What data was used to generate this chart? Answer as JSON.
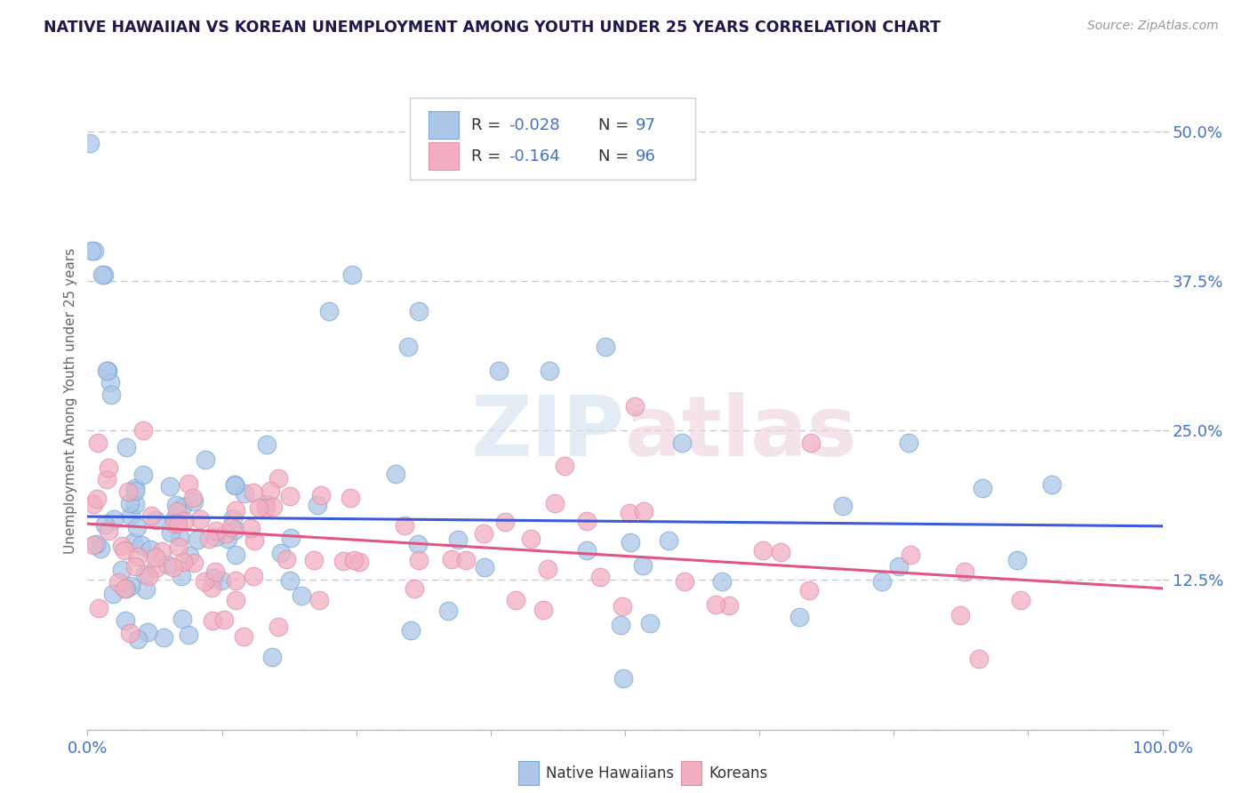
{
  "title": "NATIVE HAWAIIAN VS KOREAN UNEMPLOYMENT AMONG YOUTH UNDER 25 YEARS CORRELATION CHART",
  "source": "Source: ZipAtlas.com",
  "ylabel": "Unemployment Among Youth under 25 years",
  "xlim": [
    0,
    1.0
  ],
  "ylim": [
    0,
    0.55
  ],
  "xticks": [
    0.0,
    0.125,
    0.25,
    0.375,
    0.5,
    0.625,
    0.75,
    0.875,
    1.0
  ],
  "xticklabels": [
    "0.0%",
    "",
    "",
    "",
    "",
    "",
    "",
    "",
    "100.0%"
  ],
  "ytick_positions": [
    0.0,
    0.125,
    0.25,
    0.375,
    0.5
  ],
  "yticklabels": [
    "",
    "12.5%",
    "25.0%",
    "37.5%",
    "50.0%"
  ],
  "legend_r1": "R = -0.028",
  "legend_n1": "N = 97",
  "legend_r2": "R = -0.164",
  "legend_n2": "N = 96",
  "color_hawaiian": "#adc6e8",
  "color_korean": "#f2afc0",
  "line_color_hawaiian": "#3b5bdb",
  "line_color_korean": "#e05585",
  "watermark": "ZIPatlas",
  "background_color": "#ffffff",
  "grid_color": "#c8c8c8",
  "label_color": "#4472c4",
  "title_color": "#1a1a4e",
  "blue_line_y0": 0.178,
  "blue_line_y1": 0.17,
  "pink_line_y0": 0.172,
  "pink_line_y1": 0.118
}
